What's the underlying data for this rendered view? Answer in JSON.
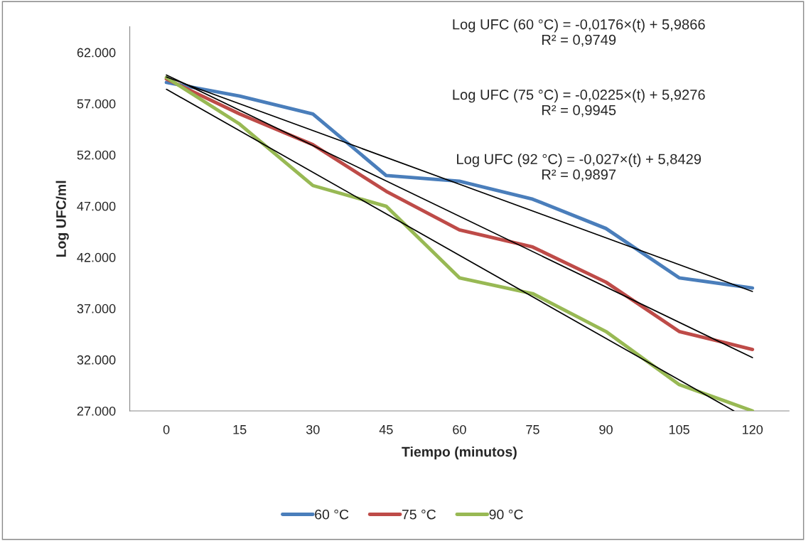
{
  "chart_data": {
    "type": "line",
    "xlabel": "Tiempo (minutos)",
    "ylabel": "Log UFC/ml",
    "x": [
      0,
      15,
      30,
      45,
      60,
      75,
      90,
      105,
      120
    ],
    "xlim": [
      -7.5,
      127.5
    ],
    "xticks": [
      0,
      15,
      30,
      45,
      60,
      75,
      90,
      105,
      120
    ],
    "ylim": [
      27000,
      64500
    ],
    "yticks": [
      {
        "value": 27000,
        "label": "27.000"
      },
      {
        "value": 32000,
        "label": "32.000"
      },
      {
        "value": 37000,
        "label": "37.000"
      },
      {
        "value": 42000,
        "label": "42.000"
      },
      {
        "value": 47000,
        "label": "47.000"
      },
      {
        "value": 52000,
        "label": "52.000"
      },
      {
        "value": 57000,
        "label": "57.000"
      },
      {
        "value": 62000,
        "label": "62.000"
      }
    ],
    "grid": false,
    "legend": "bottom",
    "marker": "none",
    "line_style": "solid",
    "series": [
      {
        "name": "60 °C",
        "color": "#4a7ebb",
        "values": [
          59070,
          57740,
          55990,
          49980,
          49420,
          47670,
          44810,
          39990,
          39000
        ]
      },
      {
        "name": "75 °C",
        "color": "#be4b48",
        "values": [
          59400,
          55990,
          52990,
          48440,
          44670,
          43000,
          39570,
          34750,
          33000
        ]
      },
      {
        "name": "90 °C",
        "color": "#98b954",
        "values": [
          59550,
          55000,
          49000,
          46980,
          39990,
          38450,
          34750,
          29570,
          27000
        ]
      },
      {
        "type": "line",
        "color": "#000000",
        "x": [
          0,
          120
        ],
        "values": [
          59600,
          38660
        ]
      },
      {
        "type": "line",
        "color": "#000000",
        "x": [
          0,
          120
        ],
        "values": [
          59800,
          32200
        ]
      },
      {
        "type": "line",
        "color": "#000000",
        "x": [
          0,
          116.2
        ],
        "values": [
          58400,
          27000
        ]
      }
    ],
    "annotations": [
      "Log UFC (60 °C) = -0,0176×(t) + 5,9866\nR² = 0,9749",
      "Log UFC (75 °C) = -0,0225×(t) + 5,9276\nR² = 0,9945",
      "Log UFC (92 °C) = -0,027×(t) + 5,8429\nR² = 0,9897"
    ]
  }
}
